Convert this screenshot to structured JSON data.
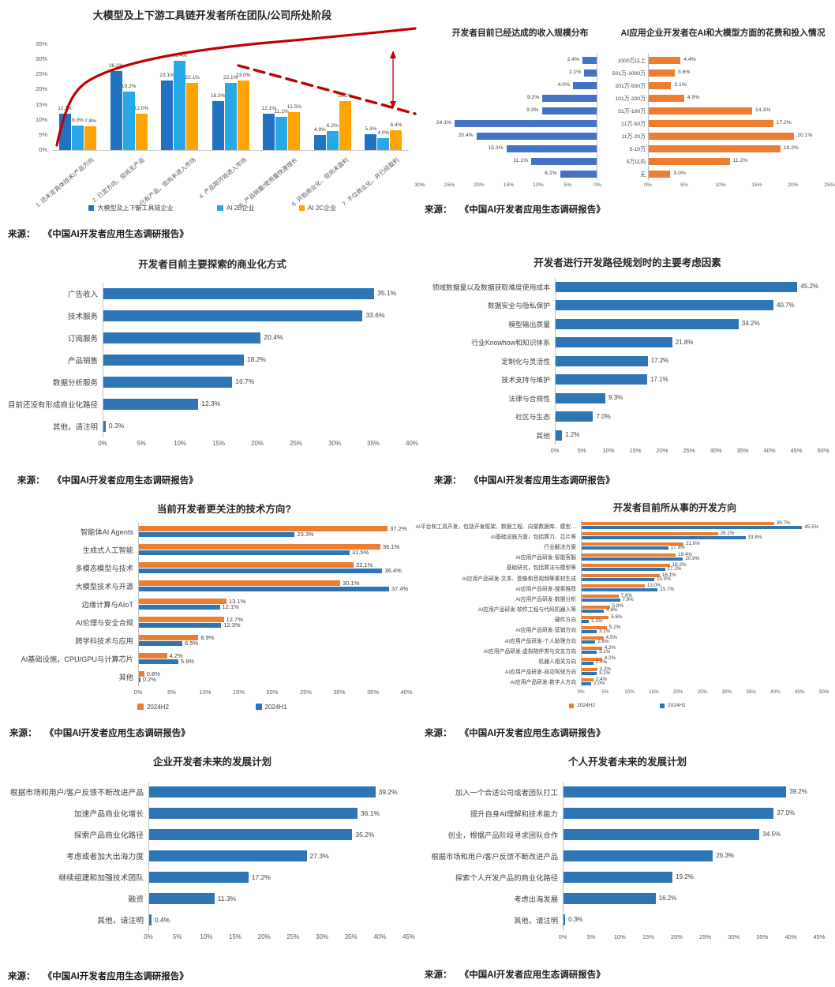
{
  "source": {
    "label": "来源：",
    "text": "《中国AI开发者应用生态调研报告》"
  },
  "chart_data": [
    {
      "id": "team-stage",
      "type": "bar",
      "orientation": "v",
      "title": "大模型及上下游工具链开发者所在团队/公司所处阶段",
      "categories": [
        "1. 还未定具体技术/产品方向",
        "2. 已定方向，但尚无产品",
        "3. 已有产品，但尚未进入市场",
        "4. 产品刚开始进入市场",
        "5. 产品销量/使用量快速增长",
        "6. 开始商业化，但尚未盈利",
        "7. 不仅商业化，并已经盈利"
      ],
      "series": [
        {
          "name": "大模型及上下游工具链企业",
          "color": "#2272C3",
          "values": [
            12.1,
            26.2,
            23.1,
            16.3,
            12.1,
            4.9,
            5.3
          ]
        },
        {
          "name": "AI 2B企业",
          "color": "#29A8E8",
          "values": [
            8.0,
            19.2,
            29.4,
            22.1,
            11.1,
            6.2,
            4.0
          ]
        },
        {
          "name": "AI 2C企业",
          "color": "#FFA400",
          "values": [
            7.8,
            12.0,
            22.1,
            23.0,
            12.5,
            16.2,
            6.4
          ]
        }
      ],
      "ylim": [
        0,
        35
      ],
      "yticks": [
        "0%",
        "5%",
        "10%",
        "15%",
        "20%",
        "25%",
        "30%",
        "35%"
      ],
      "annotation_color": "#C00000"
    },
    {
      "id": "revenue-scale",
      "type": "bar",
      "orientation": "h",
      "reverse": true,
      "title": "开发者目前已经达成的收入规模分布",
      "color": "#4472C4",
      "categories": [
        "1000万以上",
        "501万-1000万",
        "201万-500万",
        "101万-200万",
        "51万-100万",
        "21万-50万",
        "11万-20万",
        "5-10万",
        "5万以内",
        "无"
      ],
      "values": [
        2.4,
        2.1,
        4.0,
        9.2,
        9.3,
        24.1,
        20.4,
        15.3,
        11.1,
        6.2
      ],
      "xlim": [
        0,
        30
      ],
      "xticks": [
        "30%",
        "25%",
        "20%",
        "15%",
        "10%",
        "5%",
        "0%"
      ]
    },
    {
      "id": "ai-spend",
      "type": "bar",
      "orientation": "h",
      "title": "AI应用企业开发者在AI和大模型方面的花费和投入情况",
      "color": "#ED7D31",
      "categories": [
        "1000万以上",
        "501万-1000万",
        "201万-500万",
        "101万-200万",
        "51万-100万",
        "21万-50万",
        "11万-20万",
        "5-10万",
        "5万以内",
        "无"
      ],
      "values": [
        4.4,
        3.6,
        3.1,
        4.9,
        14.3,
        17.2,
        20.1,
        18.2,
        11.2,
        3.0
      ],
      "xlim": [
        0,
        25
      ],
      "xticks": [
        "0%",
        "5%",
        "10%",
        "15%",
        "20%",
        "25%"
      ]
    },
    {
      "id": "monetization",
      "type": "bar",
      "orientation": "h",
      "title": "开发者目前主要探索的商业化方式",
      "color": "#2E75B6",
      "categories": [
        "广告收入",
        "技术服务",
        "订阅服务",
        "产品销售",
        "数据分析服务",
        "目前还没有形成商业化路径",
        "其他，请注明"
      ],
      "values": [
        35.1,
        33.6,
        20.4,
        18.2,
        16.7,
        12.3,
        0.3
      ],
      "xlim": [
        0,
        40
      ],
      "xticks": [
        "0%",
        "5%",
        "10%",
        "15%",
        "20%",
        "25%",
        "30%",
        "35%",
        "40%"
      ]
    },
    {
      "id": "planning-factors",
      "type": "bar",
      "orientation": "h",
      "title": "开发者进行开发路径规划时的主要考虑因素",
      "color": "#2E75B6",
      "categories": [
        "领域数据量以及数据获取难度使用成本",
        "数据安全与隐私保护",
        "模型输出质量",
        "行业Knowhow和知识体系",
        "定制化与灵活性",
        "技术支持与维护",
        "法律与合规性",
        "社区与生态",
        "其他"
      ],
      "values": [
        45.2,
        40.7,
        34.2,
        21.8,
        17.2,
        17.1,
        9.3,
        7.0,
        1.2
      ],
      "xlim": [
        0,
        50
      ],
      "xticks": [
        "0%",
        "5%",
        "10%",
        "15%",
        "20%",
        "25%",
        "30%",
        "35%",
        "40%",
        "45%",
        "50%"
      ]
    },
    {
      "id": "tech-focus",
      "type": "bar",
      "orientation": "h",
      "grouped": true,
      "title": "当前开发者更关注的技术方向?",
      "categories": [
        "智能体AI Agents",
        "生成式人工智能",
        "多模态模型与技术",
        "大模型技术与开源",
        "边缘计算与AIoT",
        "AI伦理与安全合规",
        "跨学科技术与应用",
        "AI基础设施，CPU/GPU与计算芯片",
        "其他"
      ],
      "series": [
        {
          "name": "2024H2",
          "color": "#ED7D31",
          "values": [
            37.2,
            36.1,
            32.1,
            30.1,
            13.1,
            12.7,
            8.9,
            4.2,
            0.8
          ]
        },
        {
          "name": "2024H1",
          "color": "#2E75B6",
          "values": [
            23.3,
            31.5,
            36.4,
            37.4,
            12.1,
            12.3,
            6.5,
            5.9,
            0.2
          ]
        }
      ],
      "xlim": [
        0,
        40
      ],
      "xticks": [
        "0%",
        "5%",
        "10%",
        "15%",
        "20%",
        "25%",
        "30%",
        "35%",
        "40%"
      ]
    },
    {
      "id": "dev-directions",
      "type": "bar",
      "orientation": "h",
      "grouped": true,
      "title": "开发者目前所从事的开发方向",
      "categories": [
        "AI平台和工具开发，包括开发框架、数据工程、向量数据库、模型…",
        "AI基础设施方面，包括算力、芯片等",
        "行业解决方案",
        "AI应用产品研发-智能客服",
        "基础研究，包括算法与模型等",
        "AI应用产品研发-文本、图像和音视频等素材生成",
        "AI应用产品研发-搜索推荐",
        "AI应用产品研发-数据分析",
        "AI应用产品研发-软件工程与代码机器人等",
        "硬件方向",
        "AI应用产品研发-营销方向",
        "AI应用产品研发-个人助理方向",
        "AI应用产品研发-虚拟陪伴类与交友方向",
        "机器人相关方向",
        "AI应用产品研发-自动驾驶方向",
        "AI应用产品研发-数字人方向"
      ],
      "series": [
        {
          "name": "2024H2",
          "color": "#ED7D31",
          "values": [
            39.7,
            28.1,
            21.0,
            19.4,
            18.2,
            16.1,
            13.0,
            7.6,
            5.8,
            5.6,
            5.2,
            4.5,
            4.2,
            4.2,
            3.2,
            2.4
          ]
        },
        {
          "name": "2024H1",
          "color": "#2E75B6",
          "values": [
            45.5,
            33.8,
            17.9,
            20.9,
            17.2,
            15.0,
            15.7,
            7.9,
            4.6,
            1.5,
            3.1,
            2.8,
            3.1,
            2.4,
            3.1,
            2.0
          ]
        }
      ],
      "xlim": [
        0,
        50
      ],
      "xticks": [
        "0%",
        "5%",
        "10%",
        "15%",
        "20%",
        "25%",
        "30%",
        "35%",
        "40%",
        "45%",
        "50%"
      ]
    },
    {
      "id": "enterprise-plans",
      "type": "bar",
      "orientation": "h",
      "title": "企业开发者未来的发展计划",
      "color": "#2E75B6",
      "categories": [
        "根据市场和用户/客户反馈不断改进产品",
        "加速产品商业化增长",
        "探索产品商业化路径",
        "考虑或者加大出海力度",
        "继续组建和加强技术团队",
        "融资",
        "其他，请注明"
      ],
      "values": [
        39.2,
        36.1,
        35.2,
        27.3,
        17.2,
        11.3,
        0.4
      ],
      "xlim": [
        0,
        45
      ],
      "xticks": [
        "0%",
        "5%",
        "10%",
        "15%",
        "20%",
        "25%",
        "30%",
        "35%",
        "40%",
        "45%"
      ]
    },
    {
      "id": "individual-plans",
      "type": "bar",
      "orientation": "h",
      "title": "个人开发者未来的发展计划",
      "color": "#2E75B6",
      "categories": [
        "加入一个合适公司或者团队打工",
        "提升自身AI理解和技术能力",
        "创业，根据产品阶段寻求团队合作",
        "根据市场和用户/客户反馈不断改进产品",
        "探索个人开发产品的商业化路径",
        "考虑出海发展",
        "其他，请注明"
      ],
      "values": [
        39.2,
        37.0,
        34.5,
        26.3,
        19.2,
        16.2,
        0.3
      ],
      "xlim": [
        0,
        45
      ],
      "xticks": [
        "0%",
        "5%",
        "10%",
        "15%",
        "20%",
        "25%",
        "30%",
        "35%",
        "40%",
        "45%"
      ]
    }
  ]
}
